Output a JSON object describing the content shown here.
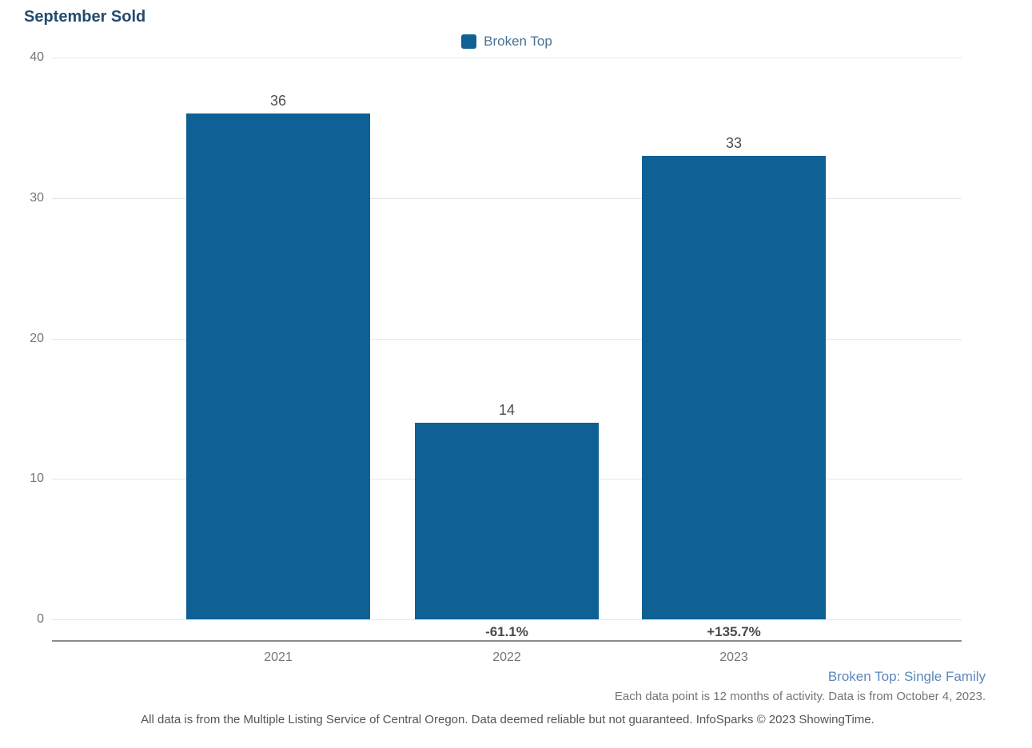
{
  "title": "September Sold",
  "legend": {
    "items": [
      {
        "label": "Broken Top",
        "swatch_color": "#0f6195"
      }
    ]
  },
  "chart_data": {
    "type": "bar",
    "title": "September Sold",
    "categories": [
      "2021",
      "2022",
      "2023"
    ],
    "series": [
      {
        "name": "Broken Top",
        "values": [
          36,
          14,
          33
        ]
      }
    ],
    "value_labels": [
      "36",
      "14",
      "33"
    ],
    "pct_change_labels": [
      "",
      "-61.1%",
      "+135.7%"
    ],
    "xlabel": "",
    "ylabel": "",
    "ylim": [
      0,
      40
    ],
    "yticks": [
      0,
      10,
      20,
      30,
      40
    ],
    "grid": true,
    "legend_position": "top-center",
    "bar_color": "#0f6195"
  },
  "footer": {
    "series_note": "Broken Top: Single Family",
    "data_note": "Each data point is 12 months of activity. Data is from October 4, 2023.",
    "disclaimer": "All data is from the Multiple Listing Service of Central Oregon. Data deemed reliable but not guaranteed. InfoSparks © 2023 ShowingTime."
  },
  "colors": {
    "bar": "#0f6195",
    "title": "#234b6e",
    "gridline": "#e6e6e6",
    "axis_line": "#8c8c8c",
    "tick_text": "#757575",
    "value_text": "#4d4d4d",
    "series_note_text": "#5b87bb",
    "disclaimer_text": "#555555"
  }
}
